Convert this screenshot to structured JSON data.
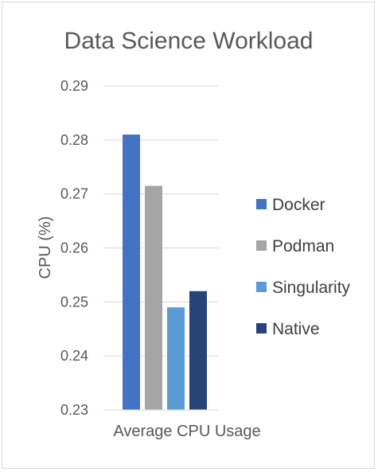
{
  "chart_data": {
    "type": "bar",
    "title": "Data Science Workload",
    "xlabel": "",
    "ylabel": "CPU (%)",
    "categories": [
      "Average CPU Usage"
    ],
    "series": [
      {
        "name": "Docker",
        "values": [
          0.281
        ],
        "color": "#4472c4"
      },
      {
        "name": "Podman",
        "values": [
          0.2715
        ],
        "color": "#a5a5a5"
      },
      {
        "name": "Singularity",
        "values": [
          0.249
        ],
        "color": "#5b9bd5"
      },
      {
        "name": "Native",
        "values": [
          0.252
        ],
        "color": "#264478"
      }
    ],
    "ylim": [
      0.23,
      0.29
    ],
    "yticks": [
      "0.23",
      "0.24",
      "0.25",
      "0.26",
      "0.27",
      "0.28",
      "0.29"
    ],
    "grid": true,
    "legend_position": "right"
  }
}
